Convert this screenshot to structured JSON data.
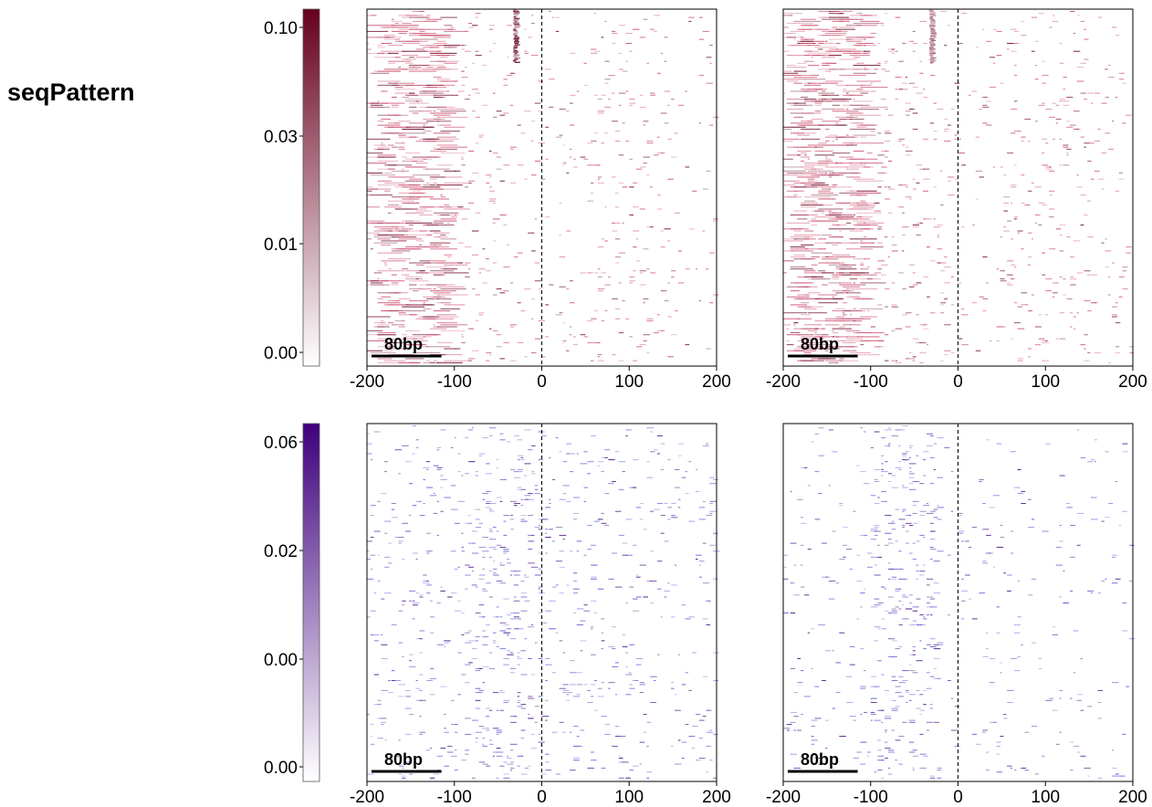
{
  "figure": {
    "title": "seqPattern"
  },
  "chart_data": [
    {
      "type": "heatmap",
      "row": 1,
      "column": 1,
      "x_range": [
        -200,
        200
      ],
      "x_ticks": [
        -200,
        -100,
        0,
        100,
        200
      ],
      "x_tick_labels": [
        "-200",
        "-100",
        "0",
        "100",
        "200"
      ],
      "reference_line_x": 0,
      "scale_bar_label": "80bp",
      "scale_bar_length_bp": 80,
      "colorbar": {
        "ticks": [
          "0.10",
          "0.03",
          "0.01",
          "0.00"
        ],
        "color_low": "#ffffff",
        "color_high": "#67001f"
      },
      "density_profile": [
        {
          "from": -200,
          "to": -110,
          "level": 0.09
        },
        {
          "from": -110,
          "to": -50,
          "level": 0.03
        },
        {
          "from": -50,
          "to": 0,
          "level": 0.02
        },
        {
          "from": 0,
          "to": 50,
          "level": 0.012
        },
        {
          "from": 50,
          "to": 150,
          "level": 0.02
        },
        {
          "from": 150,
          "to": 200,
          "level": 0.012
        }
      ],
      "hotspot": {
        "x": -30,
        "rows_fraction": [
          0,
          0.15
        ],
        "level": 0.1
      }
    },
    {
      "type": "heatmap",
      "row": 1,
      "column": 2,
      "x_range": [
        -200,
        200
      ],
      "x_ticks": [
        -200,
        -100,
        0,
        100,
        200
      ],
      "x_tick_labels": [
        "-200",
        "-100",
        "0",
        "100",
        "200"
      ],
      "reference_line_x": 0,
      "scale_bar_label": "80bp",
      "scale_bar_length_bp": 80,
      "density_profile": [
        {
          "from": -200,
          "to": -110,
          "level": 0.09
        },
        {
          "from": -110,
          "to": -50,
          "level": 0.03
        },
        {
          "from": -50,
          "to": 0,
          "level": 0.02
        },
        {
          "from": 0,
          "to": 50,
          "level": 0.015
        },
        {
          "from": 50,
          "to": 150,
          "level": 0.03
        },
        {
          "from": 150,
          "to": 200,
          "level": 0.015
        }
      ],
      "hotspot": {
        "x": -30,
        "rows_fraction": [
          0,
          0.15
        ],
        "level": 0.05
      }
    },
    {
      "type": "heatmap",
      "row": 2,
      "column": 1,
      "x_range": [
        -200,
        200
      ],
      "x_ticks": [
        -200,
        -100,
        0,
        100,
        200
      ],
      "x_tick_labels": [
        "-200",
        "-100",
        "0",
        "100",
        "200"
      ],
      "reference_line_x": 0,
      "scale_bar_label": "80bp",
      "scale_bar_length_bp": 80,
      "colorbar": {
        "ticks": [
          "0.06",
          "0.02",
          "0.00",
          "0.00"
        ],
        "color_low": "#ffffff",
        "color_high": "#3f007d"
      },
      "density_profile": [
        {
          "from": -200,
          "to": -80,
          "level": 0.025
        },
        {
          "from": -80,
          "to": -20,
          "level": 0.06
        },
        {
          "from": -20,
          "to": 60,
          "level": 0.03
        },
        {
          "from": 60,
          "to": 200,
          "level": 0.02
        }
      ]
    },
    {
      "type": "heatmap",
      "row": 2,
      "column": 2,
      "x_range": [
        -200,
        200
      ],
      "x_ticks": [
        -200,
        -100,
        0,
        100,
        200
      ],
      "x_tick_labels": [
        "-200",
        "-100",
        "0",
        "100",
        "200"
      ],
      "reference_line_x": 0,
      "scale_bar_label": "80bp",
      "scale_bar_length_bp": 80,
      "density_profile": [
        {
          "from": -200,
          "to": -100,
          "level": 0.015
        },
        {
          "from": -100,
          "to": -20,
          "level": 0.06
        },
        {
          "from": -20,
          "to": 200,
          "level": 0.012
        }
      ]
    }
  ]
}
